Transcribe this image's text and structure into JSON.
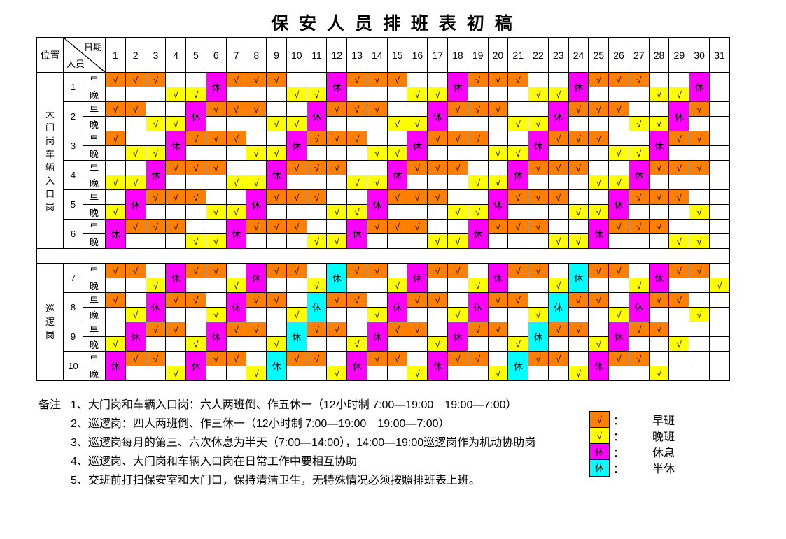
{
  "title": "保 安 人 员 排 班 表 初 稿",
  "schedule": {
    "position_header": "位置",
    "date_header": "日期",
    "person_header": "人员",
    "shift_labels": {
      "morning": "早",
      "evening": "晚"
    },
    "days": [
      1,
      2,
      3,
      4,
      5,
      6,
      7,
      8,
      9,
      10,
      11,
      12,
      13,
      14,
      15,
      16,
      17,
      18,
      19,
      20,
      21,
      22,
      23,
      24,
      25,
      26,
      27,
      28,
      29,
      30,
      31
    ],
    "check_mark": "√",
    "rest_mark": "休",
    "code_legend": {
      "E": "早班(orange check in morning row)",
      "L": "晚班(yellow check in evening row)",
      "R": "休息(magenta merged cell)",
      "H": "半休(cyan merged cell)",
      ".": "blank"
    },
    "groups": [
      {
        "position": "大门岗车辆入口岗",
        "persons": [
          {
            "id": "1",
            "codes": "EEELLREEELLREEELLREEELLREEELLR."
          },
          {
            "id": "2",
            "codes": "EELLREEELLREEELLREEELLREEELLRE."
          },
          {
            "id": "3",
            "codes": "ELLREEELLREEELLREEELLREEELLREE."
          },
          {
            "id": "4",
            "codes": "LLREEELLREEELLREEELLREEELLREEE."
          },
          {
            "id": "5",
            "codes": "LREEELLREEELLREEELLREEELLREEEL."
          },
          {
            "id": "6",
            "codes": "REEELLREEELLREEELLREEELLREEELL."
          }
        ]
      },
      {
        "position": "巡逻岗",
        "persons": [
          {
            "id": "7",
            "codes": "EELREELREELHEELREELREELHEELREEL"
          },
          {
            "id": "8",
            "codes": "ELREELREELHEELREELREELHEELREEL."
          },
          {
            "id": "9",
            "codes": "LREELREELHEELREELREELHEELREEL.."
          },
          {
            "id": "10",
            "codes": "REELREELHEELREELREELHEELREEL..."
          }
        ]
      }
    ]
  },
  "notes": {
    "label": "备注",
    "items": [
      "1、大门岗和车辆入口岗：六人两班倒、作五休一（12小时制 7:00—19:00　19:00—7:00）",
      "2、巡逻岗：四人两班倒、作三休一（12小时制 7:00—19:00　19:00—7:00）",
      "3、巡逻岗每月的第三、六次休息为半天（7:00—14:00），14:00—19:00巡逻岗作为机动协助岗",
      "4、巡逻岗、大门岗和车辆入口岗在日常工作中要相互协助",
      "5、交班前打扫保安室和大门口，保持清洁卫生，无特殊情况必须按照排班表上班。"
    ]
  },
  "legend": {
    "colon": "：",
    "items": [
      {
        "mark": "√",
        "type": "early",
        "label": "早班"
      },
      {
        "mark": "√",
        "type": "late",
        "label": "晚班"
      },
      {
        "mark": "休",
        "type": "rest",
        "label": "休息"
      },
      {
        "mark": "休",
        "type": "half",
        "label": "半休"
      }
    ]
  },
  "colors": {
    "early": "#FF8000",
    "late": "#FFFF00",
    "rest": "#FF00FF",
    "half": "#00FFFF",
    "grid": "#000000",
    "background": "#FFFFFF"
  }
}
